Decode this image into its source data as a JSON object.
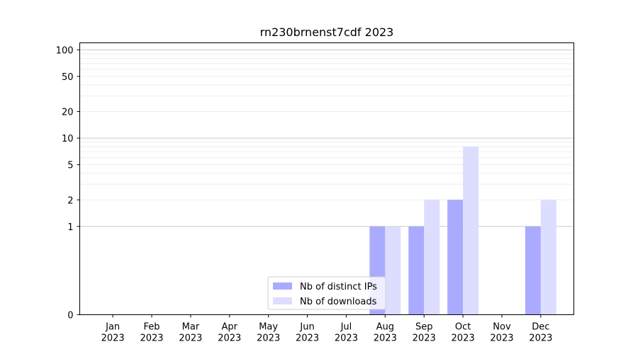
{
  "chart_data": {
    "type": "bar",
    "title": "rn230brnenst7cdf 2023",
    "xlabel": "",
    "ylabel": "",
    "yscale": "symlog",
    "ylim": [
      0,
      120
    ],
    "yticks": [
      0,
      1,
      2,
      5,
      10,
      20,
      50,
      100
    ],
    "categories": [
      {
        "month": "Jan",
        "year": "2023"
      },
      {
        "month": "Feb",
        "year": "2023"
      },
      {
        "month": "Mar",
        "year": "2023"
      },
      {
        "month": "Apr",
        "year": "2023"
      },
      {
        "month": "May",
        "year": "2023"
      },
      {
        "month": "Jun",
        "year": "2023"
      },
      {
        "month": "Jul",
        "year": "2023"
      },
      {
        "month": "Aug",
        "year": "2023"
      },
      {
        "month": "Sep",
        "year": "2023"
      },
      {
        "month": "Oct",
        "year": "2023"
      },
      {
        "month": "Nov",
        "year": "2023"
      },
      {
        "month": "Dec",
        "year": "2023"
      }
    ],
    "series": [
      {
        "name": "Nb of distinct IPs",
        "color": "#aaaaff",
        "values": [
          0,
          0,
          0,
          0,
          0,
          0,
          0,
          1,
          1,
          2,
          0,
          1
        ]
      },
      {
        "name": "Nb of downloads",
        "color": "#ddddff",
        "values": [
          0,
          0,
          0,
          0,
          0,
          0,
          0,
          1,
          2,
          8,
          0,
          2
        ]
      }
    ],
    "grid": true,
    "legend_position": "bottom-center"
  }
}
